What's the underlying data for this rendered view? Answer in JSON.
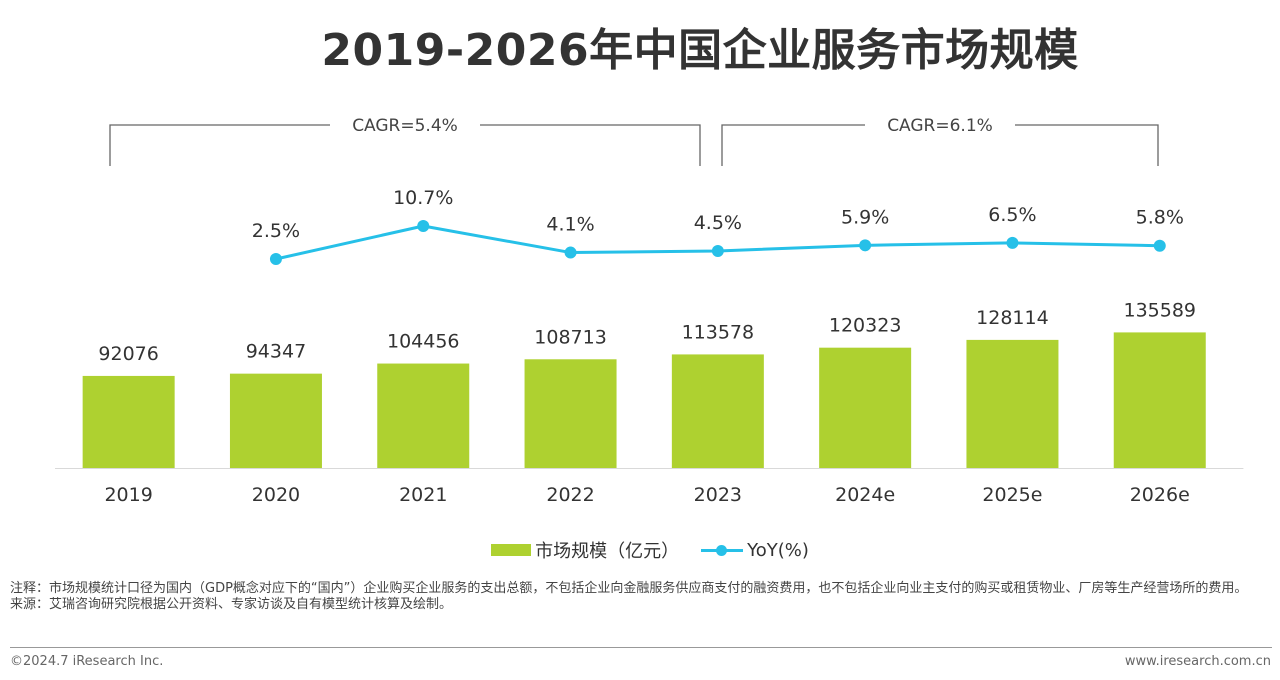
{
  "title": "2019-2026年中国企业服务市场规模",
  "chart_data": {
    "type": "bar",
    "categories": [
      "2019",
      "2020",
      "2021",
      "2022",
      "2023",
      "2024e",
      "2025e",
      "2026e"
    ],
    "series": [
      {
        "name": "市场规模（亿元）",
        "type": "bar",
        "values": [
          92076,
          94347,
          104456,
          108713,
          113578,
          120323,
          128114,
          135589
        ],
        "labels": [
          "92076",
          "94347",
          "104456",
          "108713",
          "113578",
          "120323",
          "128114",
          "135589"
        ],
        "color": "#aed130"
      },
      {
        "name": "YoY(%)",
        "type": "line",
        "values": [
          null,
          2.5,
          10.7,
          4.1,
          4.5,
          5.9,
          6.5,
          5.8
        ],
        "labels": [
          "",
          "2.5%",
          "10.7%",
          "4.1%",
          "4.5%",
          "5.9%",
          "6.5%",
          "5.8%"
        ],
        "color": "#26c0e8"
      }
    ],
    "annotations": [
      {
        "text": "CAGR=5.4%",
        "from": "2019",
        "to": "2023"
      },
      {
        "text": "CAGR=6.1%",
        "from": "2023",
        "to": "2026e"
      }
    ],
    "grid": false,
    "legend": "bottom"
  },
  "legend": {
    "bar_label": "市场规模（亿元）",
    "line_label": "YoY(%)"
  },
  "note": {
    "line1": "注释：市场规模统计口径为国内（GDP概念对应下的“国内”）企业购买企业服务的支出总额，不包括企业向金融服务供应商支付的融资费用，也不包括企业向业主支付的购买或租赁物业、厂房等生产经营场所的费用。",
    "line2": "来源：艾瑞咨询研究院根据公开资料、专家访谈及自有模型统计核算及绘制。"
  },
  "footer": {
    "copyright": "©2024.7 iResearch Inc.",
    "website": "www.iresearch.com.cn"
  }
}
